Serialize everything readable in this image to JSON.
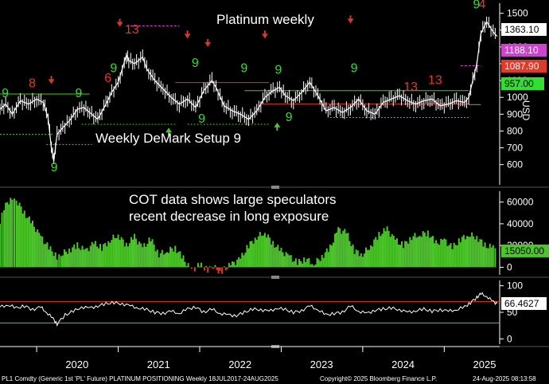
{
  "title": "Platinum weekly",
  "annotations": {
    "setup_label": "Weekly DeMark Setup 9",
    "cot_line1": "COT data shows large speculators",
    "cot_line2": "recent decrease in long exposure"
  },
  "footer": {
    "left": "PL1 Comdty (Generic 1st 'PL' Future) PLATINUM POSITIONING  Weekly 18JUL2017-24AUG2025",
    "center": "Copyright© 2025 Bloomberg Finance L.P.",
    "right": "24-Aug-2025 08:13:58"
  },
  "colors": {
    "background": "#000000",
    "price": "#ffffff",
    "count_green": "#33dd33",
    "count_red": "#e03a2a",
    "cot_fill": "#4cc62a",
    "rsi_line": "#ffffff",
    "ob_line": "#e03a2a",
    "os_line": "#33dd33",
    "tdst_red": "#d43a2a",
    "tdst_green": "#4cc62a",
    "magenta": "#cc44cc"
  },
  "chart_data": [
    {
      "type": "line",
      "name": "Platinum weekly price",
      "title": "Platinum weekly",
      "ylim": [
        480,
        1560
      ],
      "yticks": [
        600,
        700,
        800,
        900,
        1000,
        1100,
        1200,
        1300,
        1400,
        1500
      ],
      "x": [
        2019.55,
        2019.62,
        2019.7,
        2019.8,
        2019.9,
        2020.0,
        2020.08,
        2020.14,
        2020.18,
        2020.21,
        2020.25,
        2020.32,
        2020.4,
        2020.5,
        2020.58,
        2020.65,
        2020.75,
        2020.85,
        2020.92,
        2021.0,
        2021.05,
        2021.1,
        2021.13,
        2021.2,
        2021.3,
        2021.35,
        2021.45,
        2021.55,
        2021.65,
        2021.75,
        2021.85,
        2021.95,
        2022.05,
        2022.15,
        2022.2,
        2022.3,
        2022.4,
        2022.5,
        2022.6,
        2022.7,
        2022.8,
        2022.9,
        2022.98,
        2023.05,
        2023.15,
        2023.25,
        2023.35,
        2023.45,
        2023.55,
        2023.65,
        2023.75,
        2023.85,
        2023.95,
        2024.05,
        2024.15,
        2024.25,
        2024.35,
        2024.45,
        2024.55,
        2024.65,
        2024.75,
        2024.85,
        2024.95,
        2025.05,
        2025.15,
        2025.25,
        2025.3,
        2025.4,
        2025.45,
        2025.52,
        2025.6,
        2025.65
      ],
      "y": [
        930,
        960,
        900,
        980,
        960,
        990,
        970,
        880,
        700,
        620,
        780,
        820,
        860,
        930,
        940,
        910,
        870,
        960,
        1030,
        1090,
        1170,
        1250,
        1220,
        1200,
        1240,
        1170,
        1100,
        1050,
        1000,
        960,
        990,
        940,
        1040,
        1100,
        1060,
        950,
        920,
        900,
        870,
        920,
        1000,
        1040,
        1060,
        1010,
        980,
        1030,
        1090,
        1010,
        920,
        940,
        910,
        940,
        990,
        920,
        900,
        970,
        990,
        1010,
        980,
        960,
        980,
        990,
        950,
        960,
        980,
        970,
        1000,
        1200,
        1380,
        1450,
        1390,
        1363.1
      ],
      "value_badges": [
        {
          "label": "1363.10",
          "price": 1363.1,
          "bg": "#ffffff",
          "fg": "#000000"
        },
        {
          "label": "1188.10",
          "price": 1188.1,
          "bg": "#cc44cc",
          "fg": "#ffffff"
        },
        {
          "label": "1087.90",
          "price": 1087.9,
          "bg": "#e03a2a",
          "fg": "#ffffff"
        },
        {
          "label": "957.00",
          "price": 957.0,
          "bg": "#33dd33",
          "fg": "#000000"
        }
      ],
      "axis_badge_label": "USD",
      "markers": [
        {
          "x": 2019.62,
          "price": 1000,
          "text": "9",
          "color": "green"
        },
        {
          "x": 2019.95,
          "price": 1060,
          "text": "8",
          "color": "red"
        },
        {
          "x": 2020.22,
          "price": 560,
          "text": "9",
          "color": "green"
        },
        {
          "x": 2020.52,
          "price": 1000,
          "text": "9",
          "color": "green"
        },
        {
          "x": 2020.88,
          "price": 1090,
          "text": "6",
          "color": "red"
        },
        {
          "x": 2020.95,
          "price": 1150,
          "text": "9",
          "color": "green"
        },
        {
          "x": 2021.13,
          "price": 1380,
          "text": "13",
          "color": "red"
        },
        {
          "x": 2021.95,
          "price": 1180,
          "text": "9",
          "color": "green"
        },
        {
          "x": 2022.03,
          "price": 850,
          "text": "9",
          "color": "green"
        },
        {
          "x": 2022.55,
          "price": 1150,
          "text": "9",
          "color": "green"
        },
        {
          "x": 2022.97,
          "price": 1140,
          "text": "9",
          "color": "green"
        },
        {
          "x": 2023.1,
          "price": 860,
          "text": "9",
          "color": "green"
        },
        {
          "x": 2023.9,
          "price": 1150,
          "text": "9",
          "color": "green"
        },
        {
          "x": 2024.55,
          "price": 1040,
          "text": "13",
          "color": "red"
        },
        {
          "x": 2024.85,
          "price": 1080,
          "text": "13",
          "color": "red"
        },
        {
          "x": 2025.4,
          "price": 1530,
          "text": "9",
          "color": "green"
        },
        {
          "x": 2025.47,
          "price": 1530,
          "text": "4",
          "color": "red"
        }
      ],
      "arrows": [
        {
          "x": 2020.18,
          "price": 1080,
          "color": "red",
          "dir": "down"
        },
        {
          "x": 2021.02,
          "price": 1420,
          "color": "red",
          "dir": "down"
        },
        {
          "x": 2021.85,
          "price": 1350,
          "color": "red",
          "dir": "down"
        },
        {
          "x": 2022.1,
          "price": 1300,
          "color": "red",
          "dir": "down"
        },
        {
          "x": 2022.8,
          "price": 1350,
          "color": "red",
          "dir": "down"
        },
        {
          "x": 2023.85,
          "price": 1440,
          "color": "red",
          "dir": "down"
        },
        {
          "x": 2021.62,
          "price": 820,
          "color": "green",
          "dir": "up"
        },
        {
          "x": 2022.95,
          "price": 850,
          "color": "green",
          "dir": "up"
        }
      ],
      "levels": [
        {
          "price": 1425,
          "x0": 2021.1,
          "x1": 2021.75,
          "color": "magenta"
        },
        {
          "price": 1087.9,
          "x0": 2021.7,
          "x1": 2022.85,
          "color": "red"
        },
        {
          "price": 1040,
          "x0": 2022.55,
          "x1": 2025.3,
          "color": "green"
        },
        {
          "price": 1020,
          "x0": 2019.55,
          "x1": 2020.65,
          "color": "green"
        },
        {
          "price": 840,
          "x0": 2020.55,
          "x1": 2021.7,
          "color": "green"
        },
        {
          "price": 840,
          "x0": 2021.85,
          "x1": 2022.85,
          "color": "green"
        },
        {
          "price": 960,
          "x0": 2022.75,
          "x1": 2025.3,
          "color": "red"
        },
        {
          "price": 880,
          "x0": 2023.6,
          "x1": 2025.3,
          "color": "green"
        },
        {
          "price": 780,
          "x0": 2019.55,
          "x1": 2020.2,
          "color": "green"
        },
        {
          "price": 720,
          "x0": 2020.12,
          "x1": 2020.68,
          "color": "green"
        },
        {
          "price": 1188.1,
          "x0": 2025.2,
          "x1": 2025.45,
          "color": "magenta"
        },
        {
          "price": 957,
          "x0": 2025.3,
          "x1": 2025.45,
          "color": "green"
        }
      ]
    },
    {
      "type": "area",
      "name": "COT large speculators net long",
      "title": "COT data shows large speculators recent decrease in long exposure",
      "ylim": [
        -7000,
        70000
      ],
      "yticks": [
        0,
        20000,
        40000,
        60000
      ],
      "ytick_labels": [
        "0",
        "20000",
        "40000",
        "60000"
      ],
      "x": [
        2019.55,
        2019.6,
        2019.7,
        2019.75,
        2019.85,
        2019.95,
        2020.05,
        2020.15,
        2020.25,
        2020.3,
        2020.4,
        2020.5,
        2020.6,
        2020.7,
        2020.8,
        2020.9,
        2021.0,
        2021.1,
        2021.2,
        2021.3,
        2021.4,
        2021.5,
        2021.6,
        2021.7,
        2021.8,
        2021.9,
        2022.0,
        2022.1,
        2022.15,
        2022.25,
        2022.3,
        2022.4,
        2022.5,
        2022.6,
        2022.7,
        2022.8,
        2022.9,
        2023.0,
        2023.1,
        2023.2,
        2023.3,
        2023.4,
        2023.5,
        2023.6,
        2023.7,
        2023.8,
        2023.9,
        2024.0,
        2024.1,
        2024.2,
        2024.3,
        2024.4,
        2024.5,
        2024.6,
        2024.7,
        2024.8,
        2024.9,
        2025.0,
        2025.1,
        2025.2,
        2025.3,
        2025.4,
        2025.5,
        2025.6,
        2025.65
      ],
      "values": [
        40000,
        55000,
        65000,
        62000,
        50000,
        40000,
        28000,
        18000,
        10000,
        12000,
        16000,
        20000,
        15000,
        22000,
        18000,
        25000,
        30000,
        20000,
        28000,
        18000,
        26000,
        12000,
        15000,
        18000,
        8000,
        -3000,
        2000,
        -2000,
        1000,
        -4000,
        -2000,
        3000,
        8000,
        20000,
        28000,
        32000,
        22000,
        15000,
        10000,
        4000,
        8000,
        3000,
        10000,
        18000,
        35000,
        32000,
        15000,
        12000,
        20000,
        30000,
        35000,
        25000,
        20000,
        28000,
        30000,
        32000,
        22000,
        25000,
        18000,
        26000,
        30000,
        28000,
        20000,
        18000,
        15050
      ],
      "value_badges": [
        {
          "label": "15050.00",
          "value": 15050,
          "bg": "#4cc62a",
          "fg": "#000000"
        }
      ]
    },
    {
      "type": "line",
      "name": "RSI",
      "ylim": [
        -10,
        110
      ],
      "yticks": [
        0,
        50,
        100
      ],
      "overbought": 70,
      "oversold": 30,
      "x": [
        2019.55,
        2019.65,
        2019.75,
        2019.85,
        2019.95,
        2020.05,
        2020.12,
        2020.2,
        2020.25,
        2020.35,
        2020.45,
        2020.55,
        2020.65,
        2020.75,
        2020.85,
        2020.95,
        2021.05,
        2021.15,
        2021.25,
        2021.35,
        2021.45,
        2021.55,
        2021.65,
        2021.75,
        2021.85,
        2021.95,
        2022.05,
        2022.15,
        2022.25,
        2022.35,
        2022.45,
        2022.55,
        2022.65,
        2022.75,
        2022.85,
        2022.95,
        2023.05,
        2023.15,
        2023.25,
        2023.35,
        2023.45,
        2023.55,
        2023.65,
        2023.75,
        2023.85,
        2023.95,
        2024.05,
        2024.15,
        2024.25,
        2024.35,
        2024.45,
        2024.55,
        2024.65,
        2024.75,
        2024.85,
        2024.95,
        2025.05,
        2025.15,
        2025.25,
        2025.32,
        2025.4,
        2025.45,
        2025.52,
        2025.6,
        2025.65
      ],
      "values": [
        60,
        64,
        58,
        62,
        55,
        60,
        50,
        38,
        28,
        45,
        52,
        60,
        58,
        62,
        66,
        68,
        66,
        62,
        58,
        55,
        50,
        48,
        52,
        48,
        56,
        60,
        50,
        56,
        48,
        45,
        44,
        50,
        56,
        55,
        52,
        58,
        55,
        50,
        53,
        62,
        55,
        45,
        48,
        50,
        62,
        52,
        48,
        54,
        56,
        58,
        55,
        50,
        53,
        56,
        52,
        55,
        52,
        55,
        60,
        68,
        78,
        85,
        80,
        70,
        66.4627
      ],
      "value_badges": [
        {
          "label": "66.4627",
          "value": 66.4627,
          "bg": "#ffffff",
          "fg": "#000000"
        }
      ]
    },
    {
      "type": "table",
      "name": "Time axis",
      "x_tick_labels": [
        "2020",
        "2021",
        "2022",
        "2023",
        "2024",
        "2025"
      ],
      "x_tick_values": [
        2020.5,
        2021.5,
        2022.5,
        2023.5,
        2024.5,
        2025.5
      ],
      "x_range": [
        2019.55,
        2025.68
      ]
    }
  ]
}
